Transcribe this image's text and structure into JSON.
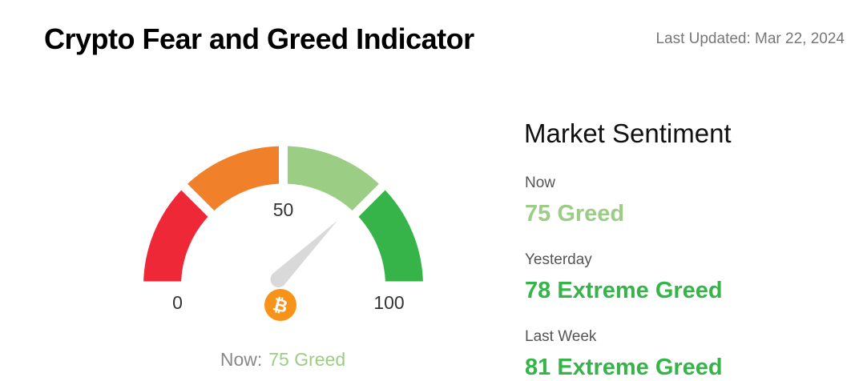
{
  "header": {
    "title": "Crypto Fear and Greed Indicator",
    "updated": "Last Updated: Mar 22, 2024"
  },
  "gauge": {
    "min": 0,
    "max": 100,
    "ticks": [
      0,
      50,
      100
    ],
    "value": 75,
    "segments": [
      {
        "from": 0,
        "to": 25,
        "color": "#ef2837"
      },
      {
        "from": 25,
        "to": 50,
        "color": "#f0802a"
      },
      {
        "from": 50,
        "to": 75,
        "color": "#9ccd84"
      },
      {
        "from": 75,
        "to": 100,
        "color": "#36b44a"
      }
    ],
    "caption_label": "Now:",
    "caption_value": "75 Greed",
    "caption_color": "#9ccd84"
  },
  "sentiment": {
    "title": "Market Sentiment",
    "items": [
      {
        "label": "Now",
        "value": "75 Greed",
        "color": "#9ccd84"
      },
      {
        "label": "Yesterday",
        "value": "78 Extreme Greed",
        "color": "#36b44a"
      },
      {
        "label": "Last Week",
        "value": "81 Extreme Greed",
        "color": "#36b44a"
      }
    ]
  }
}
